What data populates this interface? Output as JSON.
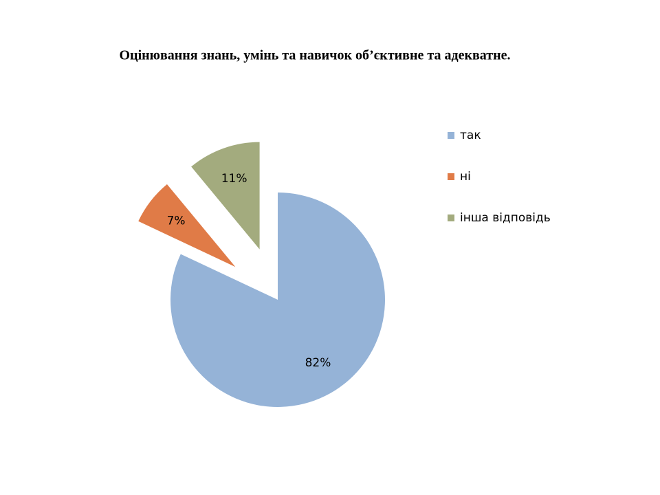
{
  "chart_data": {
    "type": "pie",
    "title": "Оцінювання знань, умінь та навичок об’єктивне та адекватне.",
    "categories": [
      "так",
      "ні",
      "інша відповідь"
    ],
    "values": [
      82,
      7,
      11
    ],
    "value_labels": [
      "82%",
      "7%",
      "11%"
    ],
    "colors": [
      "#95b3d7",
      "#e07b47",
      "#a3ab7e"
    ],
    "legend": "right"
  }
}
